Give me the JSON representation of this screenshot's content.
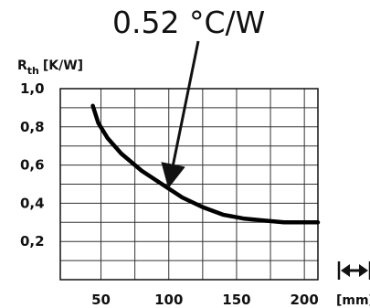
{
  "chart_data": {
    "type": "line",
    "ylabel_main": "R",
    "ylabel_sub": "th",
    "ylabel_unit": "[K/W]",
    "xunit": "[mm]",
    "xlim": [
      20,
      210
    ],
    "ylim": [
      0.0,
      1.0
    ],
    "x_ticks": [
      50,
      100,
      150,
      200
    ],
    "x_tick_labels": [
      "50",
      "100",
      "150",
      "200"
    ],
    "y_ticks": [
      0.2,
      0.4,
      0.6,
      0.8,
      1.0
    ],
    "y_tick_labels": [
      "0,2",
      "0,4",
      "0,6",
      "0,8",
      "1,0"
    ],
    "grid": true,
    "series": [
      {
        "x": [
          44,
          48,
          55,
          65,
          80,
          95,
          110,
          125,
          140,
          155,
          170,
          185,
          200,
          210
        ],
        "y": [
          0.91,
          0.82,
          0.74,
          0.66,
          0.57,
          0.5,
          0.43,
          0.38,
          0.34,
          0.32,
          0.31,
          0.3,
          0.3,
          0.3
        ]
      }
    ],
    "annotation": {
      "text": "0.52 °C/W",
      "x": 100,
      "y": 0.49
    }
  },
  "icons": {
    "length": "double-arrow-icon"
  }
}
